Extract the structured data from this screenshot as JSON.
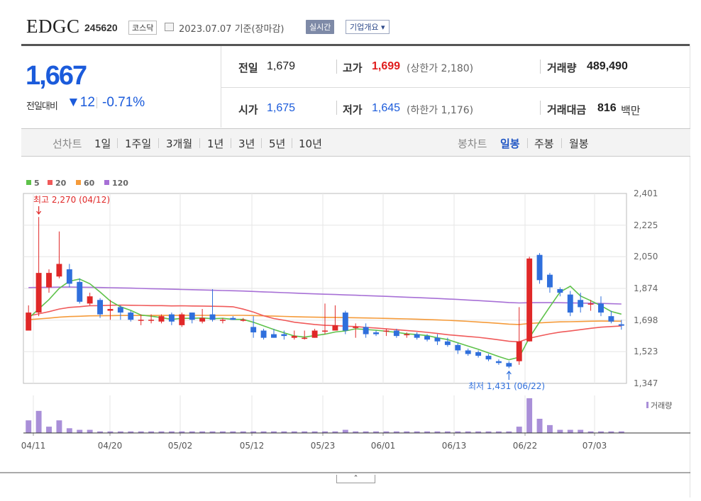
{
  "header": {
    "name": "EDGC",
    "code": "245620",
    "market": "코스닥",
    "date_text": "2023.07.07  기준(장마감)",
    "realtime_label": "실시간",
    "overview_label": "기업개요 ▾"
  },
  "quote": {
    "price": "1,667",
    "change_label": "전일대비",
    "change_abs": "▼12",
    "change_pct": "-0.71%",
    "prev_label": "전일",
    "prev": "1,679",
    "open_label": "시가",
    "open": "1,675",
    "high_label": "고가",
    "high": "1,699",
    "upper_limit": "(상한가 2,180)",
    "low_label": "저가",
    "low": "1,645",
    "lower_limit": "(하한가 1,176)",
    "volume_label": "거래량",
    "volume": "489,490",
    "amount_label": "거래대금",
    "amount": "816",
    "amount_unit": "백만"
  },
  "tabs": {
    "line_label": "선차트",
    "periods": [
      "1일",
      "1주일",
      "3개월",
      "1년",
      "3년",
      "5년",
      "10년"
    ],
    "candle_label": "봉차트",
    "candles": [
      "일봉",
      "주봉",
      "월봉"
    ],
    "active_candle": "일봉"
  },
  "colors": {
    "up": "#e02828",
    "down": "#2f6fdc",
    "ma5": "#5ec24a",
    "ma20": "#f05a5a",
    "ma60": "#f59b3a",
    "ma120": "#a770d6",
    "volume": "#a98fd8"
  },
  "chart_data": {
    "type": "candlestick",
    "legend": [
      {
        "name": "5",
        "color": "#5ec24a"
      },
      {
        "name": "20",
        "color": "#f05a5a"
      },
      {
        "name": "60",
        "color": "#f59b3a"
      },
      {
        "name": "120",
        "color": "#a770d6"
      }
    ],
    "y_ticks": [
      "2,401",
      "2,225",
      "2,050",
      "1,874",
      "1,698",
      "1,523",
      "1,347"
    ],
    "y_range": [
      1347,
      2401
    ],
    "x_ticks": [
      "04/11",
      "04/20",
      "05/02",
      "05/12",
      "05/23",
      "06/01",
      "06/13",
      "06/22",
      "07/03"
    ],
    "high_annotation": "최고 2,270 (04/12)",
    "low_annotation": "최저 1,431 (06/22)",
    "volume_label": "거래량",
    "candles": [
      [
        1640,
        1740,
        1780,
        1640,
        8
      ],
      [
        1740,
        1960,
        2270,
        1720,
        14
      ],
      [
        1880,
        1960,
        1980,
        1850,
        4
      ],
      [
        1940,
        2010,
        2190,
        1930,
        8
      ],
      [
        1980,
        1900,
        2010,
        1880,
        3
      ],
      [
        1910,
        1800,
        1930,
        1790,
        2
      ],
      [
        1790,
        1830,
        1850,
        1780,
        2
      ],
      [
        1810,
        1730,
        1820,
        1710,
        1
      ],
      [
        1750,
        1760,
        1810,
        1700,
        1
      ],
      [
        1770,
        1740,
        1780,
        1700,
        1
      ],
      [
        1740,
        1700,
        1750,
        1690,
        1
      ],
      [
        1700,
        1700,
        1730,
        1670,
        1
      ],
      [
        1700,
        1700,
        1730,
        1680,
        1
      ],
      [
        1690,
        1720,
        1730,
        1680,
        1
      ],
      [
        1730,
        1690,
        1740,
        1670,
        1
      ],
      [
        1670,
        1730,
        1740,
        1660,
        1
      ],
      [
        1740,
        1700,
        1740,
        1680,
        1
      ],
      [
        1690,
        1710,
        1760,
        1680,
        1
      ],
      [
        1730,
        1700,
        1870,
        1690,
        1
      ],
      [
        1700,
        1700,
        1710,
        1680,
        1
      ],
      [
        1710,
        1700,
        1720,
        1700,
        1
      ],
      [
        1700,
        1700,
        1710,
        1690,
        1
      ],
      [
        1660,
        1630,
        1720,
        1600,
        1
      ],
      [
        1640,
        1600,
        1650,
        1590,
        1
      ],
      [
        1620,
        1600,
        1650,
        1600,
        1
      ],
      [
        1620,
        1610,
        1640,
        1590,
        1
      ],
      [
        1600,
        1610,
        1640,
        1590,
        1
      ],
      [
        1600,
        1600,
        1640,
        1590,
        1
      ],
      [
        1600,
        1640,
        1650,
        1600,
        1
      ],
      [
        1640,
        1640,
        1790,
        1620,
        1
      ],
      [
        1640,
        1670,
        1780,
        1640,
        1
      ],
      [
        1740,
        1640,
        1750,
        1620,
        2
      ],
      [
        1660,
        1660,
        1680,
        1600,
        1
      ],
      [
        1660,
        1620,
        1680,
        1600,
        1
      ],
      [
        1630,
        1620,
        1640,
        1610,
        1
      ],
      [
        1640,
        1640,
        1650,
        1610,
        1
      ],
      [
        1640,
        1610,
        1650,
        1600,
        1
      ],
      [
        1620,
        1620,
        1630,
        1600,
        1
      ],
      [
        1620,
        1600,
        1630,
        1590,
        1
      ],
      [
        1610,
        1590,
        1620,
        1580,
        1
      ],
      [
        1600,
        1580,
        1620,
        1560,
        1
      ],
      [
        1580,
        1560,
        1600,
        1550,
        1
      ],
      [
        1560,
        1530,
        1570,
        1510,
        1
      ],
      [
        1530,
        1510,
        1540,
        1500,
        1
      ],
      [
        1520,
        1500,
        1530,
        1490,
        1
      ],
      [
        1500,
        1480,
        1510,
        1470,
        1
      ],
      [
        1470,
        1460,
        1480,
        1450,
        1
      ],
      [
        1460,
        1440,
        1470,
        1431,
        1
      ],
      [
        1470,
        1580,
        1770,
        1450,
        4
      ],
      [
        1580,
        2040,
        2050,
        1580,
        22
      ],
      [
        2060,
        1920,
        2070,
        1900,
        9
      ],
      [
        1950,
        1880,
        1960,
        1850,
        5
      ],
      [
        1870,
        1850,
        1880,
        1830,
        2
      ],
      [
        1840,
        1740,
        1860,
        1720,
        2
      ],
      [
        1810,
        1770,
        1850,
        1740,
        2
      ],
      [
        1790,
        1790,
        1810,
        1750,
        1
      ],
      [
        1790,
        1740,
        1830,
        1720,
        1
      ],
      [
        1720,
        1690,
        1750,
        1680,
        1
      ],
      [
        1675,
        1667,
        1699,
        1645,
        1
      ]
    ]
  }
}
